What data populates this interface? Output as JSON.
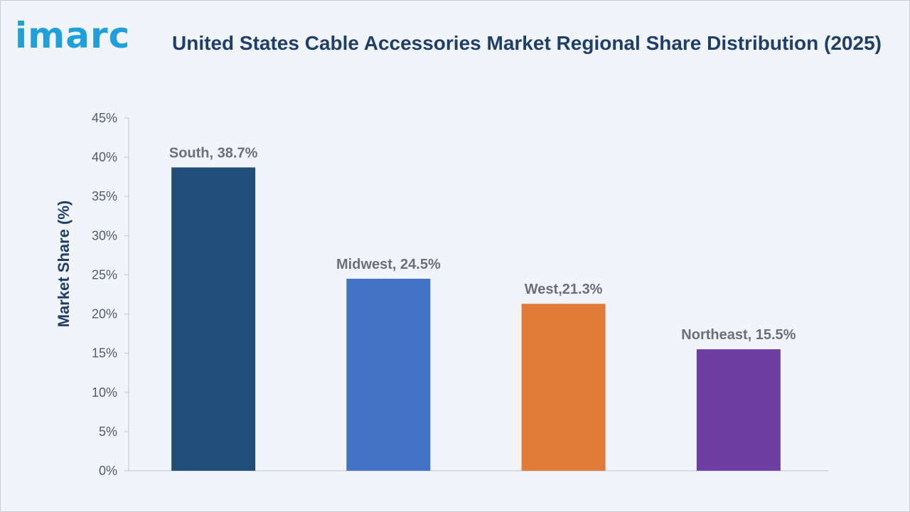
{
  "logo": {
    "text": "imarc"
  },
  "chart_data": {
    "type": "bar",
    "title": "United States Cable Accessories Market Regional Share Distribution (2025)",
    "xlabel": "",
    "ylabel": "Market Share (%)",
    "ylim": [
      0,
      45
    ],
    "yticks": [
      "0%",
      "5%",
      "10%",
      "15%",
      "20%",
      "25%",
      "30%",
      "35%",
      "40%",
      "45%"
    ],
    "categories": [
      "South",
      "Midwest",
      "West",
      "Northeast"
    ],
    "values": [
      38.7,
      24.5,
      21.3,
      15.5
    ],
    "data_labels": [
      "South, 38.7%",
      "Midwest, 24.5%",
      "West,21.3%",
      "Northeast, 15.5%"
    ],
    "colors": [
      "#1f4e79",
      "#4472c4",
      "#e07b39",
      "#6e3fa3"
    ],
    "grid": false,
    "legend": "none"
  }
}
